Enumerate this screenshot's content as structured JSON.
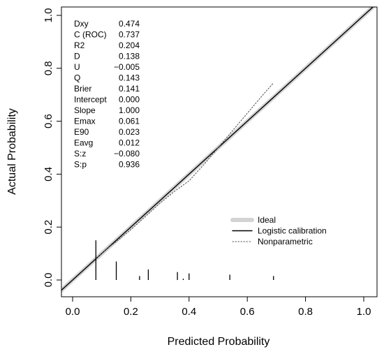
{
  "chart_data": {
    "type": "line",
    "title": "",
    "xlabel": "Predicted Probability",
    "ylabel": "Actual Probability",
    "xlim": [
      0.0,
      1.0
    ],
    "ylim": [
      0.0,
      1.0
    ],
    "x_ticks": [
      {
        "value": 0.0,
        "label": "0.0"
      },
      {
        "value": 0.2,
        "label": "0.2"
      },
      {
        "value": 0.4,
        "label": "0.4"
      },
      {
        "value": 0.6,
        "label": "0.6"
      },
      {
        "value": 0.8,
        "label": "0.8"
      },
      {
        "value": 1.0,
        "label": "1.0"
      }
    ],
    "y_ticks": [
      {
        "value": 0.0,
        "label": "0.0"
      },
      {
        "value": 0.2,
        "label": "0.2"
      },
      {
        "value": 0.4,
        "label": "0.4"
      },
      {
        "value": 0.6,
        "label": "0.6"
      },
      {
        "value": 0.8,
        "label": "0.8"
      },
      {
        "value": 1.0,
        "label": "1.0"
      }
    ],
    "grid": false,
    "legend_position": "bottom-right",
    "series": [
      {
        "name": "Ideal",
        "style": "thick-light-gray",
        "color": "#d3d3d3",
        "x": [
          -0.05,
          1.05
        ],
        "y": [
          -0.05,
          1.05
        ]
      },
      {
        "name": "Logistic calibration",
        "style": "solid",
        "color": "#000000",
        "x": [
          -0.05,
          1.05
        ],
        "y": [
          -0.05,
          1.05
        ]
      },
      {
        "name": "Nonparametric",
        "style": "dotted",
        "color": "#555555",
        "x": [
          0.08,
          0.12,
          0.15,
          0.2,
          0.25,
          0.3,
          0.35,
          0.4,
          0.45,
          0.5,
          0.55,
          0.6,
          0.65,
          0.69
        ],
        "y": [
          0.08,
          0.12,
          0.145,
          0.19,
          0.24,
          0.29,
          0.335,
          0.375,
          0.435,
          0.5,
          0.565,
          0.63,
          0.695,
          0.745
        ]
      }
    ],
    "rug": {
      "x": [
        0.08,
        0.15,
        0.23,
        0.26,
        0.36,
        0.38,
        0.4,
        0.54,
        0.69
      ],
      "height": [
        0.15,
        0.07,
        0.015,
        0.04,
        0.03,
        0.005,
        0.025,
        0.02,
        0.015
      ]
    },
    "stats": [
      {
        "label": "Dxy",
        "value": "0.474"
      },
      {
        "label": "C (ROC)",
        "value": "0.737"
      },
      {
        "label": "R2",
        "value": "0.204"
      },
      {
        "label": "D",
        "value": "0.138"
      },
      {
        "label": "U",
        "value": "−0.005"
      },
      {
        "label": "Q",
        "value": "0.143"
      },
      {
        "label": "Brier",
        "value": "0.141"
      },
      {
        "label": "Intercept",
        "value": "0.000"
      },
      {
        "label": "Slope",
        "value": "1.000"
      },
      {
        "label": "Emax",
        "value": "0.061"
      },
      {
        "label": "E90",
        "value": "0.023"
      },
      {
        "label": "Eavg",
        "value": "0.012"
      },
      {
        "label": "S:z",
        "value": "−0.080"
      },
      {
        "label": "S:p",
        "value": "0.936"
      }
    ]
  }
}
